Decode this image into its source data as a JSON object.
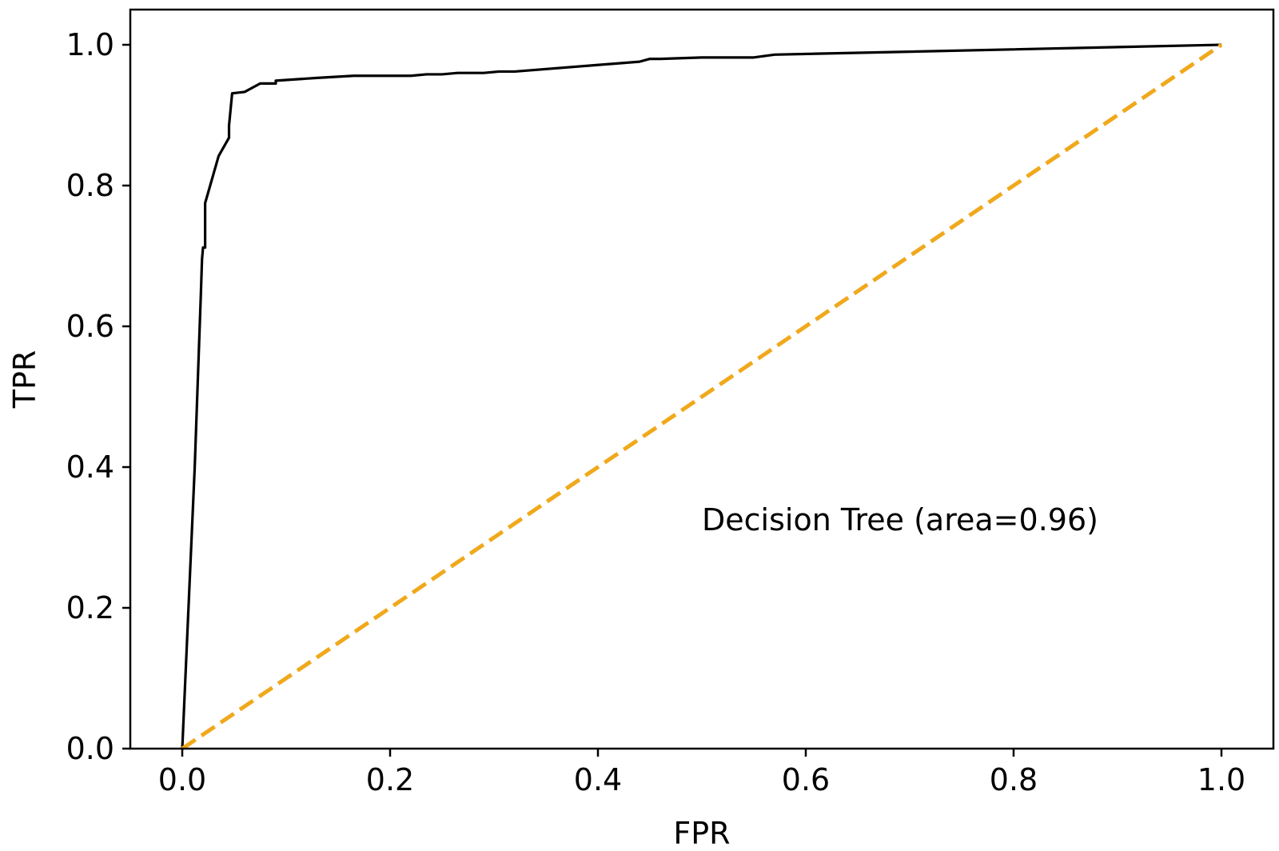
{
  "chart_data": {
    "type": "line",
    "title": "",
    "xlabel": "FPR",
    "ylabel": "TPR",
    "xlim": [
      -0.05,
      1.05
    ],
    "ylim": [
      0.0,
      1.05
    ],
    "xticks": [
      0.0,
      0.2,
      0.4,
      0.6,
      0.8,
      1.0
    ],
    "xtick_labels": [
      "0.0",
      "0.2",
      "0.4",
      "0.6",
      "0.8",
      "1.0"
    ],
    "yticks": [
      0.0,
      0.2,
      0.4,
      0.6,
      0.8,
      1.0
    ],
    "ytick_labels": [
      "0.0",
      "0.2",
      "0.4",
      "0.6",
      "0.8",
      "1.0"
    ],
    "grid": false,
    "annotation": {
      "text": "Decision Tree (area=0.96)",
      "x": 0.5,
      "y": 0.31
    },
    "series": [
      {
        "style": "solid",
        "color": "#000000",
        "x": [
          0.0,
          0.012,
          0.018,
          0.019,
          0.02,
          0.022,
          0.022,
          0.035,
          0.045,
          0.045,
          0.048,
          0.06,
          0.075,
          0.09,
          0.09,
          0.1,
          0.13,
          0.165,
          0.22,
          0.235,
          0.25,
          0.265,
          0.29,
          0.305,
          0.32,
          0.44,
          0.45,
          0.46,
          0.5,
          0.55,
          0.57,
          1.0
        ],
        "y": [
          0.0,
          0.4,
          0.65,
          0.695,
          0.712,
          0.712,
          0.775,
          0.842,
          0.868,
          0.885,
          0.931,
          0.933,
          0.945,
          0.945,
          0.949,
          0.95,
          0.953,
          0.956,
          0.956,
          0.958,
          0.958,
          0.96,
          0.96,
          0.962,
          0.962,
          0.976,
          0.98,
          0.98,
          0.982,
          0.982,
          0.986,
          1.0
        ]
      },
      {
        "style": "dashed",
        "color": "#f0a91c",
        "x": [
          0.0,
          1.0
        ],
        "y": [
          0.0,
          1.0
        ]
      }
    ]
  }
}
